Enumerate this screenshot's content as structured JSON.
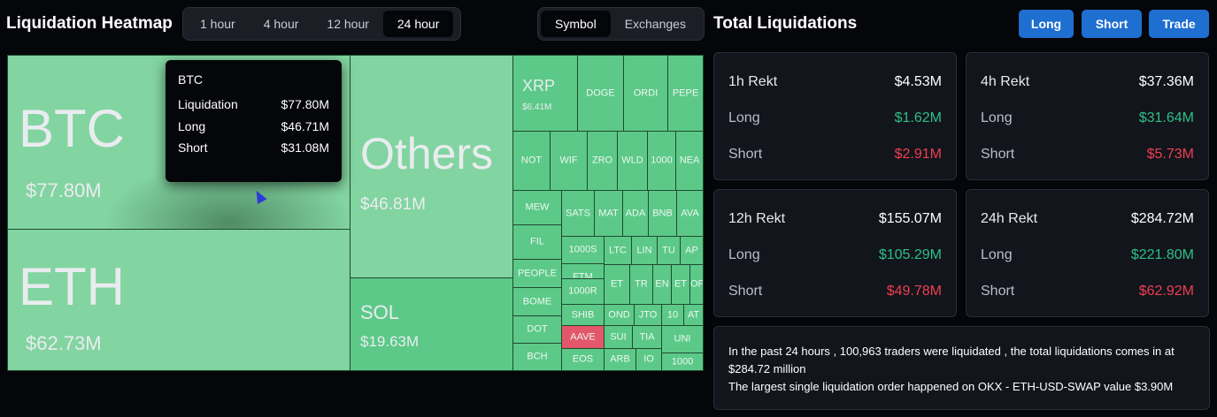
{
  "header": {
    "heatmap_title": "Liquidation Heatmap",
    "time_options": [
      "1 hour",
      "4 hour",
      "12 hour",
      "24 hour"
    ],
    "time_selected": "24 hour",
    "view_options": [
      "Symbol",
      "Exchanges"
    ],
    "view_selected": "Symbol",
    "total_title": "Total Liquidations",
    "buttons": {
      "long": "Long",
      "short": "Short",
      "trade": "Trade"
    }
  },
  "treemap": {
    "btc": {
      "symbol": "BTC",
      "value": "$77.80M"
    },
    "eth": {
      "symbol": "ETH",
      "value": "$62.73M"
    },
    "others": {
      "symbol": "Others",
      "value": "$46.81M"
    },
    "sol": {
      "symbol": "SOL",
      "value": "$19.63M"
    },
    "xrp": {
      "symbol": "XRP",
      "value": "$6.41M"
    },
    "small": [
      "DOGE",
      "ORDI",
      "PEPE",
      "NOT",
      "WIF",
      "ZRO",
      "WLD",
      "1000",
      "NEA",
      "MEW",
      "SATS",
      "MAT",
      "ADA",
      "BNB",
      "AVA",
      "FIL",
      "1000S",
      "LTC",
      "LIN",
      "TU",
      "AP",
      "PEOPLE",
      "FTM",
      "ET",
      "TR",
      "EN",
      "ET",
      "OP",
      "BOME",
      "1000R",
      "SHIB",
      "OND",
      "JTO",
      "10",
      "AT",
      "DOT",
      "AAVE",
      "SUI",
      "TIA",
      "UNI",
      "BCH",
      "EOS",
      "ARB",
      "IO",
      "1000"
    ]
  },
  "tooltip": {
    "title": "BTC",
    "rows": [
      {
        "label": "Liquidation",
        "value": "$77.80M"
      },
      {
        "label": "Long",
        "value": "$46.71M"
      },
      {
        "label": "Short",
        "value": "$31.08M"
      }
    ]
  },
  "stats": {
    "h1": {
      "title": "1h Rekt",
      "total": "$4.53M",
      "long_label": "Long",
      "long": "$1.62M",
      "short_label": "Short",
      "short": "$2.91M"
    },
    "h4": {
      "title": "4h Rekt",
      "total": "$37.36M",
      "long_label": "Long",
      "long": "$31.64M",
      "short_label": "Short",
      "short": "$5.73M"
    },
    "h12": {
      "title": "12h Rekt",
      "total": "$155.07M",
      "long_label": "Long",
      "long": "$105.29M",
      "short_label": "Short",
      "short": "$49.78M"
    },
    "h24": {
      "title": "24h Rekt",
      "total": "$284.72M",
      "long_label": "Long",
      "long": "$221.80M",
      "short_label": "Short",
      "short": "$62.92M"
    }
  },
  "summary": {
    "line1": "In the past 24 hours , 100,963 traders were liquidated , the total liquidations comes in at $284.72 million",
    "line2": "The largest single liquidation order happened on OKX - ETH-USD-SWAP value $3.90M"
  },
  "colors": {
    "up": "#2fbf85",
    "down": "#ef3e52",
    "accent": "#1f6fd1",
    "cell_green": "#5cc988",
    "cell_red": "#e2586a"
  }
}
